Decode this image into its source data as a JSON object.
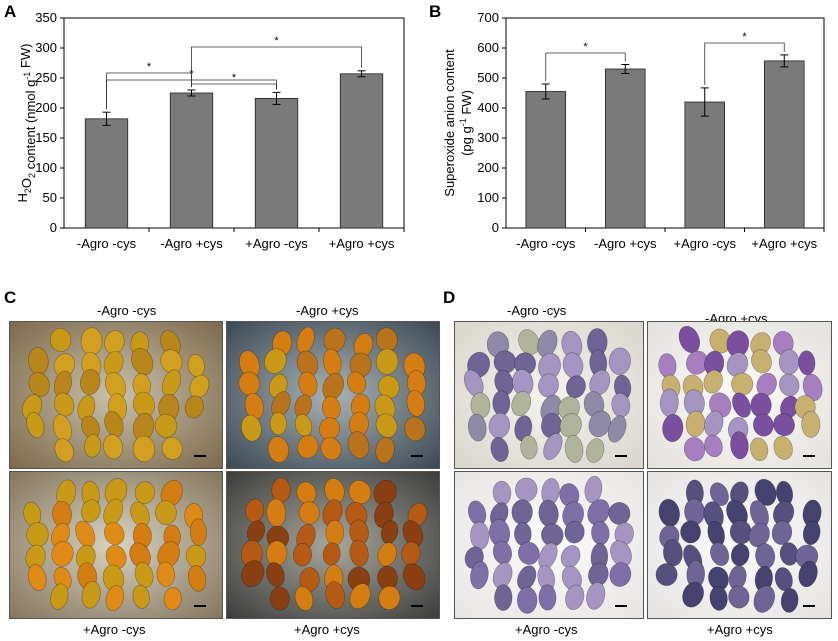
{
  "panels": {
    "a": "A",
    "b": "B",
    "c": "C",
    "d": "D"
  },
  "colors": {
    "bar": "#7a7a7a",
    "seed_orange_bg": "#8f6a33",
    "seed_yellow": "#c99a18",
    "seed_orange": "#d47d12",
    "seed_brown": "#8a3f12",
    "seed_purple": "#6e6496",
    "seed_purple_light": "#a495c2",
    "seed_violet": "#7b4fa0",
    "seed_dark": "#454270"
  },
  "chart_data": [
    {
      "type": "bar",
      "panel": "A",
      "title": "",
      "ylabel_parts": [
        "H",
        "2",
        "O",
        "2",
        " content (nmol g",
        "-1",
        " FW)"
      ],
      "categories": [
        "-Agro -cys",
        "-Agro +cys",
        "+Agro -cys",
        "+Agro +cys"
      ],
      "values": [
        182,
        225,
        216,
        257
      ],
      "errors": [
        11,
        5,
        10,
        5
      ],
      "ylim": [
        0,
        350
      ],
      "yticks": [
        0,
        50,
        100,
        150,
        200,
        250,
        300,
        350
      ],
      "significance": [
        {
          "from": 1,
          "to": 2,
          "label": "*"
        },
        {
          "from": 0,
          "to": 1,
          "label": "*"
        },
        {
          "from": 0,
          "to": 2,
          "label": "*"
        },
        {
          "from": 1,
          "to": 3,
          "label": "*"
        }
      ]
    },
    {
      "type": "bar",
      "panel": "B",
      "title": "",
      "ylabel_line1": "Superoxide anion content",
      "ylabel_line2_parts": [
        "(pg g",
        "-1",
        " FW)"
      ],
      "categories": [
        "-Agro -cys",
        "-Agro +cys",
        "+Agro -cys",
        "+Agro +cys"
      ],
      "values": [
        455,
        530,
        420,
        557
      ],
      "errors": [
        25,
        15,
        47,
        20
      ],
      "ylim": [
        0,
        700
      ],
      "yticks": [
        0,
        100,
        200,
        300,
        400,
        500,
        600,
        700
      ],
      "significance": [
        {
          "from": 0,
          "to": 1,
          "label": "*"
        },
        {
          "from": 2,
          "to": 3,
          "label": "*"
        }
      ]
    }
  ],
  "photos_c": {
    "top_left": "-Agro -cys",
    "top_right": "-Agro +cys",
    "bottom_left": "+Agro -cys",
    "bottom_right": "+Agro +cys"
  },
  "photos_d": {
    "top_left": "-Agro -cys",
    "top_right": "-Agro +cys",
    "bottom_left": "+Agro -cys",
    "bottom_right": "+Agro +cys"
  }
}
